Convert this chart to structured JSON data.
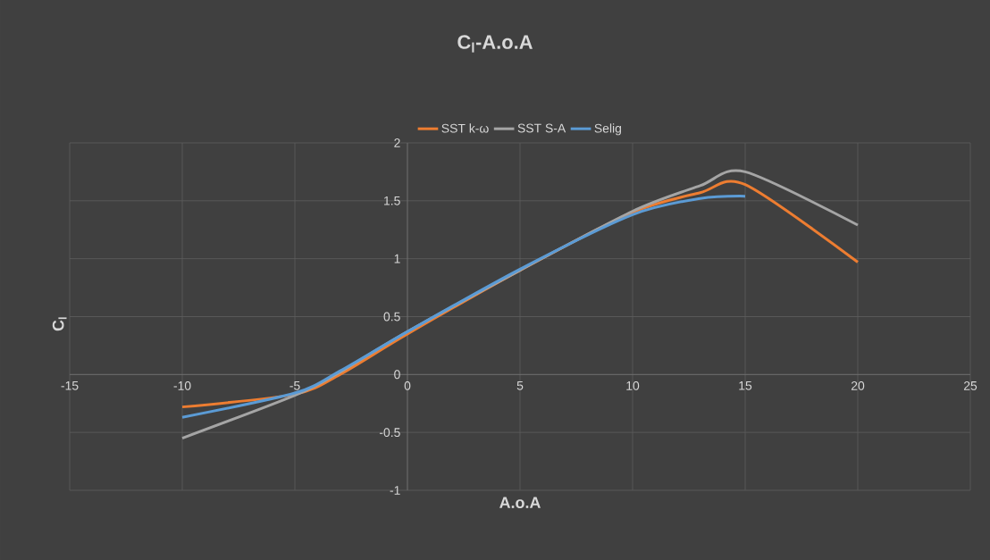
{
  "chart_data": {
    "type": "line",
    "title": "C$_{l}$-A.o.A",
    "xlabel": "A.o.A",
    "ylabel": "C$_{l}$",
    "xlim": [
      -15,
      25
    ],
    "xticks": [
      -15,
      -10,
      -5,
      0,
      5,
      10,
      15,
      20,
      25
    ],
    "ylim": [
      -1,
      2
    ],
    "yticks": [
      -1,
      -0.5,
      0,
      0.5,
      1,
      1.5,
      2
    ],
    "grid": true,
    "legend": "top",
    "marker": "none",
    "line_style": "solid",
    "series": [
      {
        "name": "SST k-ω",
        "color": "#ed7d31",
        "x": [
          -10,
          -5,
          -3,
          0,
          5,
          10,
          13,
          15,
          20
        ],
        "values": [
          -0.28,
          -0.17,
          0.0,
          0.35,
          0.9,
          1.4,
          1.57,
          1.64,
          0.97
        ]
      },
      {
        "name": "SST S-A",
        "color": "#a5a5a5",
        "x": [
          -10,
          -5,
          -3,
          0,
          5,
          10,
          13,
          15,
          20
        ],
        "values": [
          -0.55,
          -0.18,
          0.02,
          0.37,
          0.9,
          1.41,
          1.63,
          1.75,
          1.29
        ]
      },
      {
        "name": "Selig",
        "color": "#5b9bd5",
        "x": [
          -10,
          -5,
          -3,
          0,
          5,
          10,
          13,
          15
        ],
        "values": [
          -0.37,
          -0.16,
          0.03,
          0.37,
          0.91,
          1.38,
          1.52,
          1.54
        ]
      }
    ]
  }
}
